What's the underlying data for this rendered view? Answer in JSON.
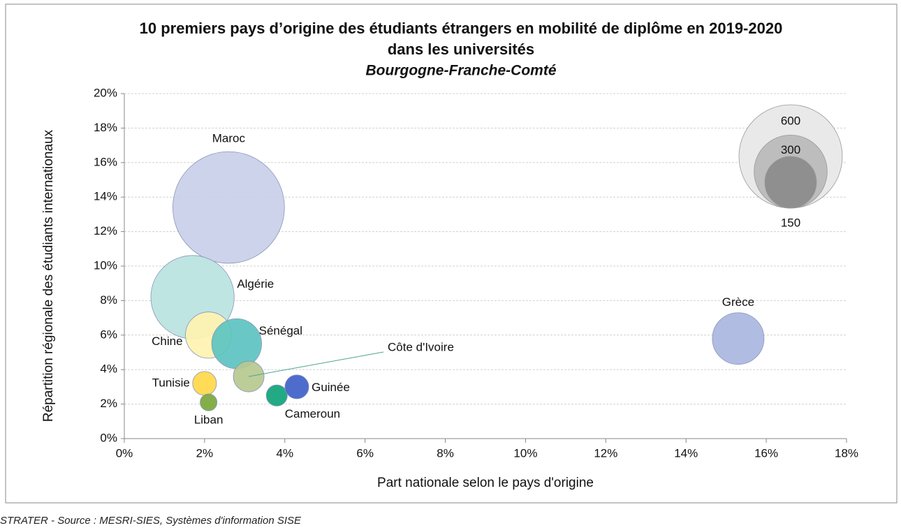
{
  "chart_data": {
    "type": "bubble",
    "title": "10 premiers pays d’origine des étudiants étrangers en mobilité de diplôme en 2019-2020",
    "title_line2": "dans les universités",
    "subtitle": "Bourgogne-Franche-Comté",
    "x_label": "Part nationale selon le pays d'origine",
    "y_label": "Répartition régionale des étudiants internationaux",
    "source": "STRATER - Source : MESRI-SIES, Systèmes d'information SISE",
    "xlim": [
      0,
      18
    ],
    "xticks": [
      {
        "value": 0,
        "label": "0%"
      },
      {
        "value": 2,
        "label": "2%"
      },
      {
        "value": 4,
        "label": "4%"
      },
      {
        "value": 6,
        "label": "6%"
      },
      {
        "value": 8,
        "label": "8%"
      },
      {
        "value": 10,
        "label": "10%"
      },
      {
        "value": 12,
        "label": "12%"
      },
      {
        "value": 14,
        "label": "14%"
      },
      {
        "value": 16,
        "label": "16%"
      },
      {
        "value": 18,
        "label": "18%"
      }
    ],
    "ylim": [
      0,
      20
    ],
    "yticks": [
      {
        "value": 0,
        "label": "0%"
      },
      {
        "value": 2,
        "label": "2%"
      },
      {
        "value": 4,
        "label": "4%"
      },
      {
        "value": 6,
        "label": "6%"
      },
      {
        "value": 8,
        "label": "8%"
      },
      {
        "value": 10,
        "label": "10%"
      },
      {
        "value": 12,
        "label": "12%"
      },
      {
        "value": 14,
        "label": "14%"
      },
      {
        "value": 16,
        "label": "16%"
      },
      {
        "value": 18,
        "label": "18%"
      },
      {
        "value": 20,
        "label": "20%"
      }
    ],
    "grid": true,
    "points": [
      {
        "label": "Maroc",
        "x": 2.6,
        "y": 13.4,
        "size": 700,
        "color": "#c9cfe8"
      },
      {
        "label": "Algérie",
        "x": 1.7,
        "y": 8.2,
        "size": 390,
        "color": "#b8e3df"
      },
      {
        "label": "Chine",
        "x": 2.1,
        "y": 6.0,
        "size": 120,
        "color": "#fff3b0"
      },
      {
        "label": "Sénégal",
        "x": 2.8,
        "y": 5.5,
        "size": 140,
        "color": "#5cc3c0"
      },
      {
        "label": "Côte d'Ivoire",
        "x": 3.1,
        "y": 3.6,
        "size": 53,
        "color": "#b6c98f"
      },
      {
        "label": "Tunisie",
        "x": 2.0,
        "y": 3.2,
        "size": 32,
        "color": "#ffd84a"
      },
      {
        "label": "Liban",
        "x": 2.1,
        "y": 2.1,
        "size": 16,
        "color": "#79a73a"
      },
      {
        "label": "Cameroun",
        "x": 3.8,
        "y": 2.5,
        "size": 25,
        "color": "#0fa37a"
      },
      {
        "label": "Guinée",
        "x": 4.3,
        "y": 3.0,
        "size": 32,
        "color": "#3f5fc8"
      },
      {
        "label": "Grèce",
        "x": 15.3,
        "y": 5.8,
        "size": 150,
        "color": "#a9b6e0"
      }
    ],
    "size_legend": [
      600,
      300,
      150
    ]
  }
}
